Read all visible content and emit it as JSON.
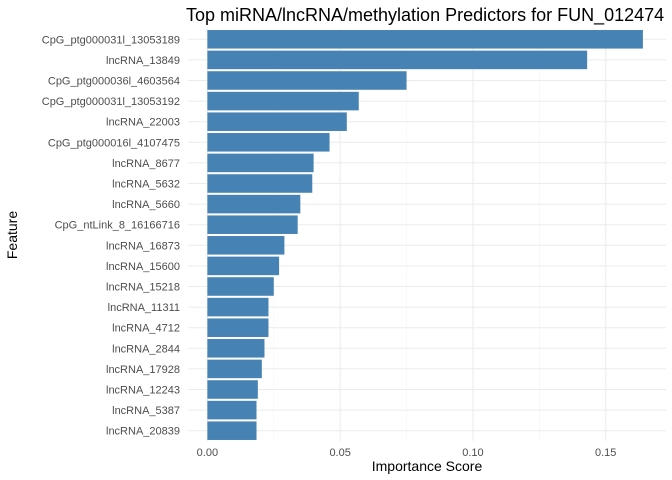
{
  "chart_data": {
    "type": "bar",
    "orientation": "horizontal",
    "title": "Top miRNA/lncRNA/methylation Predictors for FUN_012474",
    "xlabel": "Importance Score",
    "ylabel": "Feature",
    "xlim": [
      -0.0073,
      0.1727
    ],
    "x_ticks": [
      0.0,
      0.05,
      0.1,
      0.15
    ],
    "x_tick_labels": [
      "0.00",
      "0.05",
      "0.10",
      "0.15"
    ],
    "grid": true,
    "bar_color": "#4682b4",
    "categories": [
      "CpG_ptg000031l_13053189",
      "lncRNA_13849",
      "CpG_ptg000036l_4603564",
      "CpG_ptg000031l_13053192",
      "lncRNA_22003",
      "CpG_ptg000016l_4107475",
      "lncRNA_8677",
      "lncRNA_5632",
      "lncRNA_5660",
      "CpG_ntLink_8_16166716",
      "lncRNA_16873",
      "lncRNA_15600",
      "lncRNA_15218",
      "lncRNA_11311",
      "lncRNA_4712",
      "lncRNA_2844",
      "lncRNA_17928",
      "lncRNA_12243",
      "lncRNA_5387",
      "lncRNA_20839"
    ],
    "values": [
      0.164,
      0.143,
      0.075,
      0.057,
      0.0525,
      0.046,
      0.04,
      0.0395,
      0.035,
      0.034,
      0.029,
      0.027,
      0.025,
      0.023,
      0.023,
      0.0215,
      0.0205,
      0.019,
      0.0185,
      0.0185
    ]
  }
}
